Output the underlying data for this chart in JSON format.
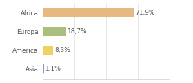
{
  "categories": [
    "Africa",
    "Europa",
    "America",
    "Asia"
  ],
  "values": [
    71.9,
    18.7,
    8.3,
    1.1
  ],
  "labels": [
    "71,9%",
    "18,7%",
    "8,3%",
    "1,1%"
  ],
  "bar_colors": [
    "#e8b882",
    "#a8bf80",
    "#f0d060",
    "#7a9fd4"
  ],
  "background_color": "#ffffff",
  "xlim": [
    0,
    100
  ],
  "label_fontsize": 6.5,
  "tick_fontsize": 6.5,
  "bar_height": 0.5,
  "text_color": "#555555",
  "grid_color": "#dddddd",
  "spine_color": "#cccccc"
}
